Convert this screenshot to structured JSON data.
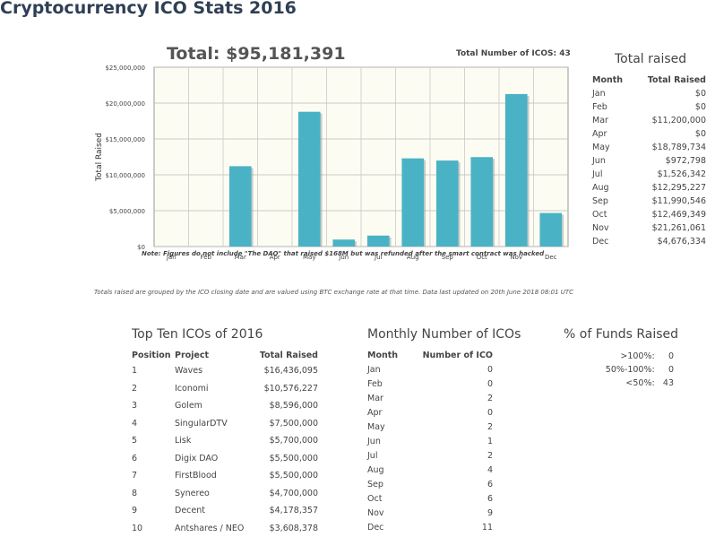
{
  "page": {
    "title": "Cryptocurrency ICO Stats 2016"
  },
  "chart_header": {
    "total": "Total: $95,181,391",
    "count": "Total Number of ICOS: 43"
  },
  "chart_data": {
    "type": "bar",
    "title": "Total: $95,181,391",
    "xlabel": "",
    "ylabel": "Total Raised",
    "ylim": [
      0,
      25000000
    ],
    "yticks": [
      0,
      5000000,
      10000000,
      15000000,
      20000000,
      25000000
    ],
    "ytick_labels": [
      "$0",
      "$5,000,000",
      "$10,000,000",
      "$15,000,000",
      "$20,000,000",
      "$25,000,000"
    ],
    "categories": [
      "Jan",
      "Feb",
      "Mar",
      "Apr",
      "May",
      "Jun",
      "Jul",
      "Aug",
      "Sep",
      "Oct",
      "Nov",
      "Dec"
    ],
    "values": [
      0,
      0,
      11200000,
      0,
      18789734,
      972798,
      1526342,
      12295227,
      11990546,
      12469349,
      21261061,
      4676334
    ],
    "grid": true,
    "color": "#4ab2c5"
  },
  "notes": {
    "line1": "Note: Figures do not include \"The DAO\" that raised $168M but was refunded after the smart contract was hacked",
    "line2": "Totals raised are grouped by the ICO closing date and are valued using BTC exchange rate at that time. Data last updated on 20th June 2018 08:01 UTC"
  },
  "total_raised": {
    "title": "Total raised",
    "headers": [
      "Month",
      "Total Raised"
    ],
    "rows": [
      [
        "Jan",
        "$0"
      ],
      [
        "Feb",
        "$0"
      ],
      [
        "Mar",
        "$11,200,000"
      ],
      [
        "Apr",
        "$0"
      ],
      [
        "May",
        "$18,789,734"
      ],
      [
        "Jun",
        "$972,798"
      ],
      [
        "Jul",
        "$1,526,342"
      ],
      [
        "Aug",
        "$12,295,227"
      ],
      [
        "Sep",
        "$11,990,546"
      ],
      [
        "Oct",
        "$12,469,349"
      ],
      [
        "Nov",
        "$21,261,061"
      ],
      [
        "Dec",
        "$4,676,334"
      ]
    ]
  },
  "top_ten": {
    "title": "Top Ten ICOs of 2016",
    "headers": [
      "Position",
      "Project",
      "Total Raised"
    ],
    "rows": [
      [
        "1",
        "Waves",
        "$16,436,095"
      ],
      [
        "2",
        "Iconomi",
        "$10,576,227"
      ],
      [
        "3",
        "Golem",
        "$8,596,000"
      ],
      [
        "4",
        "SingularDTV",
        "$7,500,000"
      ],
      [
        "5",
        "Lisk",
        "$5,700,000"
      ],
      [
        "6",
        "Digix DAO",
        "$5,500,000"
      ],
      [
        "7",
        "FirstBlood",
        "$5,500,000"
      ],
      [
        "8",
        "Synereo",
        "$4,700,000"
      ],
      [
        "9",
        "Decent",
        "$4,178,357"
      ],
      [
        "10",
        "Antshares / NEO",
        "$3,608,378"
      ]
    ]
  },
  "monthly_number": {
    "title": "Monthly Number of ICOs",
    "headers": [
      "Month",
      "Number of ICO"
    ],
    "rows": [
      [
        "Jan",
        "0"
      ],
      [
        "Feb",
        "0"
      ],
      [
        "Mar",
        "2"
      ],
      [
        "Apr",
        "0"
      ],
      [
        "May",
        "2"
      ],
      [
        "Jun",
        "1"
      ],
      [
        "Jul",
        "2"
      ],
      [
        "Aug",
        "4"
      ],
      [
        "Sep",
        "6"
      ],
      [
        "Oct",
        "6"
      ],
      [
        "Nov",
        "9"
      ],
      [
        "Dec",
        "11"
      ]
    ]
  },
  "funds_raised": {
    "title": "% of Funds Raised",
    "rows": [
      [
        ">100%:",
        "0"
      ],
      [
        "50%-100%:",
        "0"
      ],
      [
        "<50%:",
        "43"
      ]
    ]
  }
}
